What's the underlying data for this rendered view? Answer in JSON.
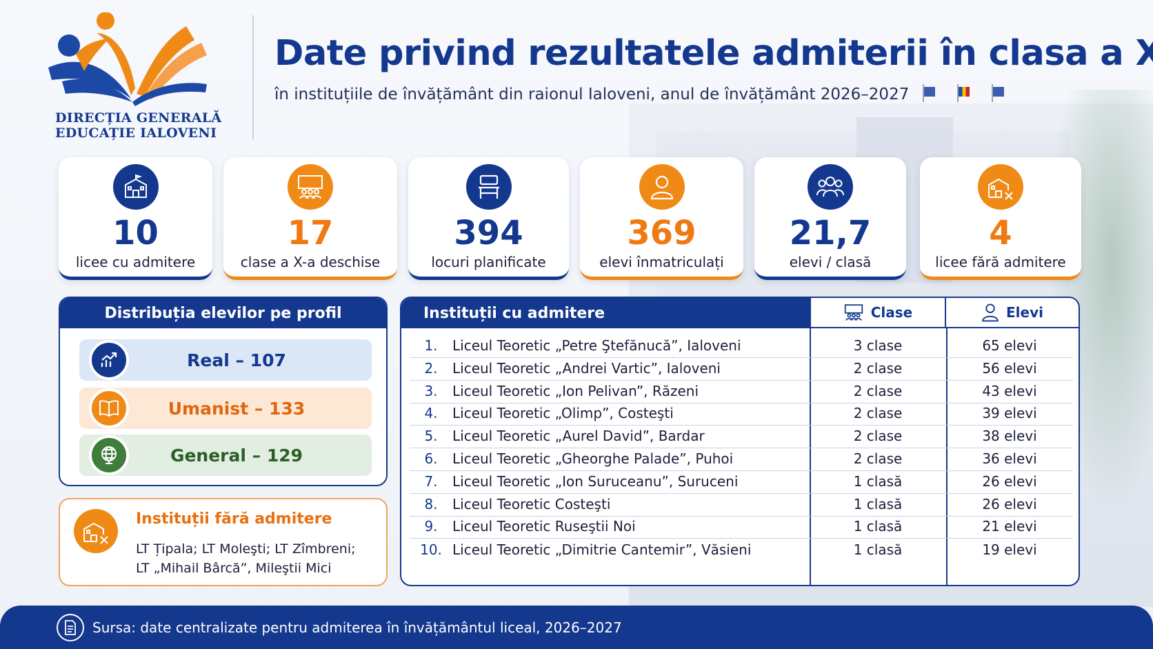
{
  "header": {
    "org_line1": "DIRECȚIA GENERALĂ",
    "org_line2": "EDUCAȚIE IALOVENI",
    "title": "Date privind rezultatele admiterii în clasa a X-a",
    "subtitle": "în instituțiile de învățământ din raionul Ialoveni, anul de învățământ 2026–2027"
  },
  "stats": [
    {
      "value": "10",
      "label": "licee cu admitere",
      "icon": "school-icon",
      "color": "#13388e"
    },
    {
      "value": "17",
      "label": "clase a X-a deschise",
      "icon": "classroom-icon",
      "color": "#f08a17"
    },
    {
      "value": "394",
      "label": "locuri planificate",
      "icon": "desk-icon",
      "color": "#13388e"
    },
    {
      "value": "369",
      "label": "elevi înmatriculați",
      "icon": "user-icon",
      "color": "#f08a17"
    },
    {
      "value": "21,7",
      "label": "elevi / clasă",
      "icon": "group-icon",
      "color": "#13388e"
    },
    {
      "value": "4",
      "label": "licee fără admitere",
      "icon": "school-x-icon",
      "color": "#f08a17"
    }
  ],
  "profile": {
    "title": "Distribuția elevilor pe profil",
    "items": [
      {
        "label": "Real – 107",
        "icon": "chart-up-icon"
      },
      {
        "label": "Umanist – 133",
        "icon": "book-icon"
      },
      {
        "label": "General – 129",
        "icon": "globe-icon"
      }
    ]
  },
  "no_admission": {
    "title": "Instituții fără admitere",
    "line1": "LT Țipala; LT Moleşti; LT Zîmbreni;",
    "line2": "LT „Mihail Bârcă”, Mileştii Mici"
  },
  "table": {
    "title": "Instituții cu admitere",
    "col_classes": "Clase",
    "col_students": "Elevi",
    "rows": [
      {
        "n": "1.",
        "name": "Liceul Teoretic „Petre Ştefănucă”, Ialoveni",
        "classes": "3 clase",
        "students": "65 elevi"
      },
      {
        "n": "2.",
        "name": "Liceul Teoretic „Andrei Vartic”, Ialoveni",
        "classes": "2 clase",
        "students": "56 elevi"
      },
      {
        "n": "3.",
        "name": "Liceul Teoretic „Ion Pelivan”, Răzeni",
        "classes": "2 clase",
        "students": "43 elevi"
      },
      {
        "n": "4.",
        "name": "Liceul Teoretic „Olimp”, Costeşti",
        "classes": "2 clase",
        "students": "39 elevi"
      },
      {
        "n": "5.",
        "name": "Liceul Teoretic „Aurel David”, Bardar",
        "classes": "2 clase",
        "students": "38 elevi"
      },
      {
        "n": "6.",
        "name": "Liceul Teoretic „Gheorghe Palade”, Puhoi",
        "classes": "2 clase",
        "students": "36 elevi"
      },
      {
        "n": "7.",
        "name": "Liceul Teoretic „Ion Suruceanu”, Suruceni",
        "classes": "1 clasă",
        "students": "26 elevi"
      },
      {
        "n": "8.",
        "name": "Liceul Teoretic Costeşti",
        "classes": "1 clasă",
        "students": "26 elevi"
      },
      {
        "n": "9.",
        "name": "Liceul Teoretic Ruseştii Noi",
        "classes": "1 clasă",
        "students": "21 elevi"
      },
      {
        "n": "10.",
        "name": "Liceul Teoretic „Dimitrie Cantemir”, Văsieni",
        "classes": "1 clasă",
        "students": "19 elevi"
      }
    ]
  },
  "footer": {
    "source": "Sursa: date centralizate pentru admiterea în învățământul liceal, 2026–2027"
  }
}
